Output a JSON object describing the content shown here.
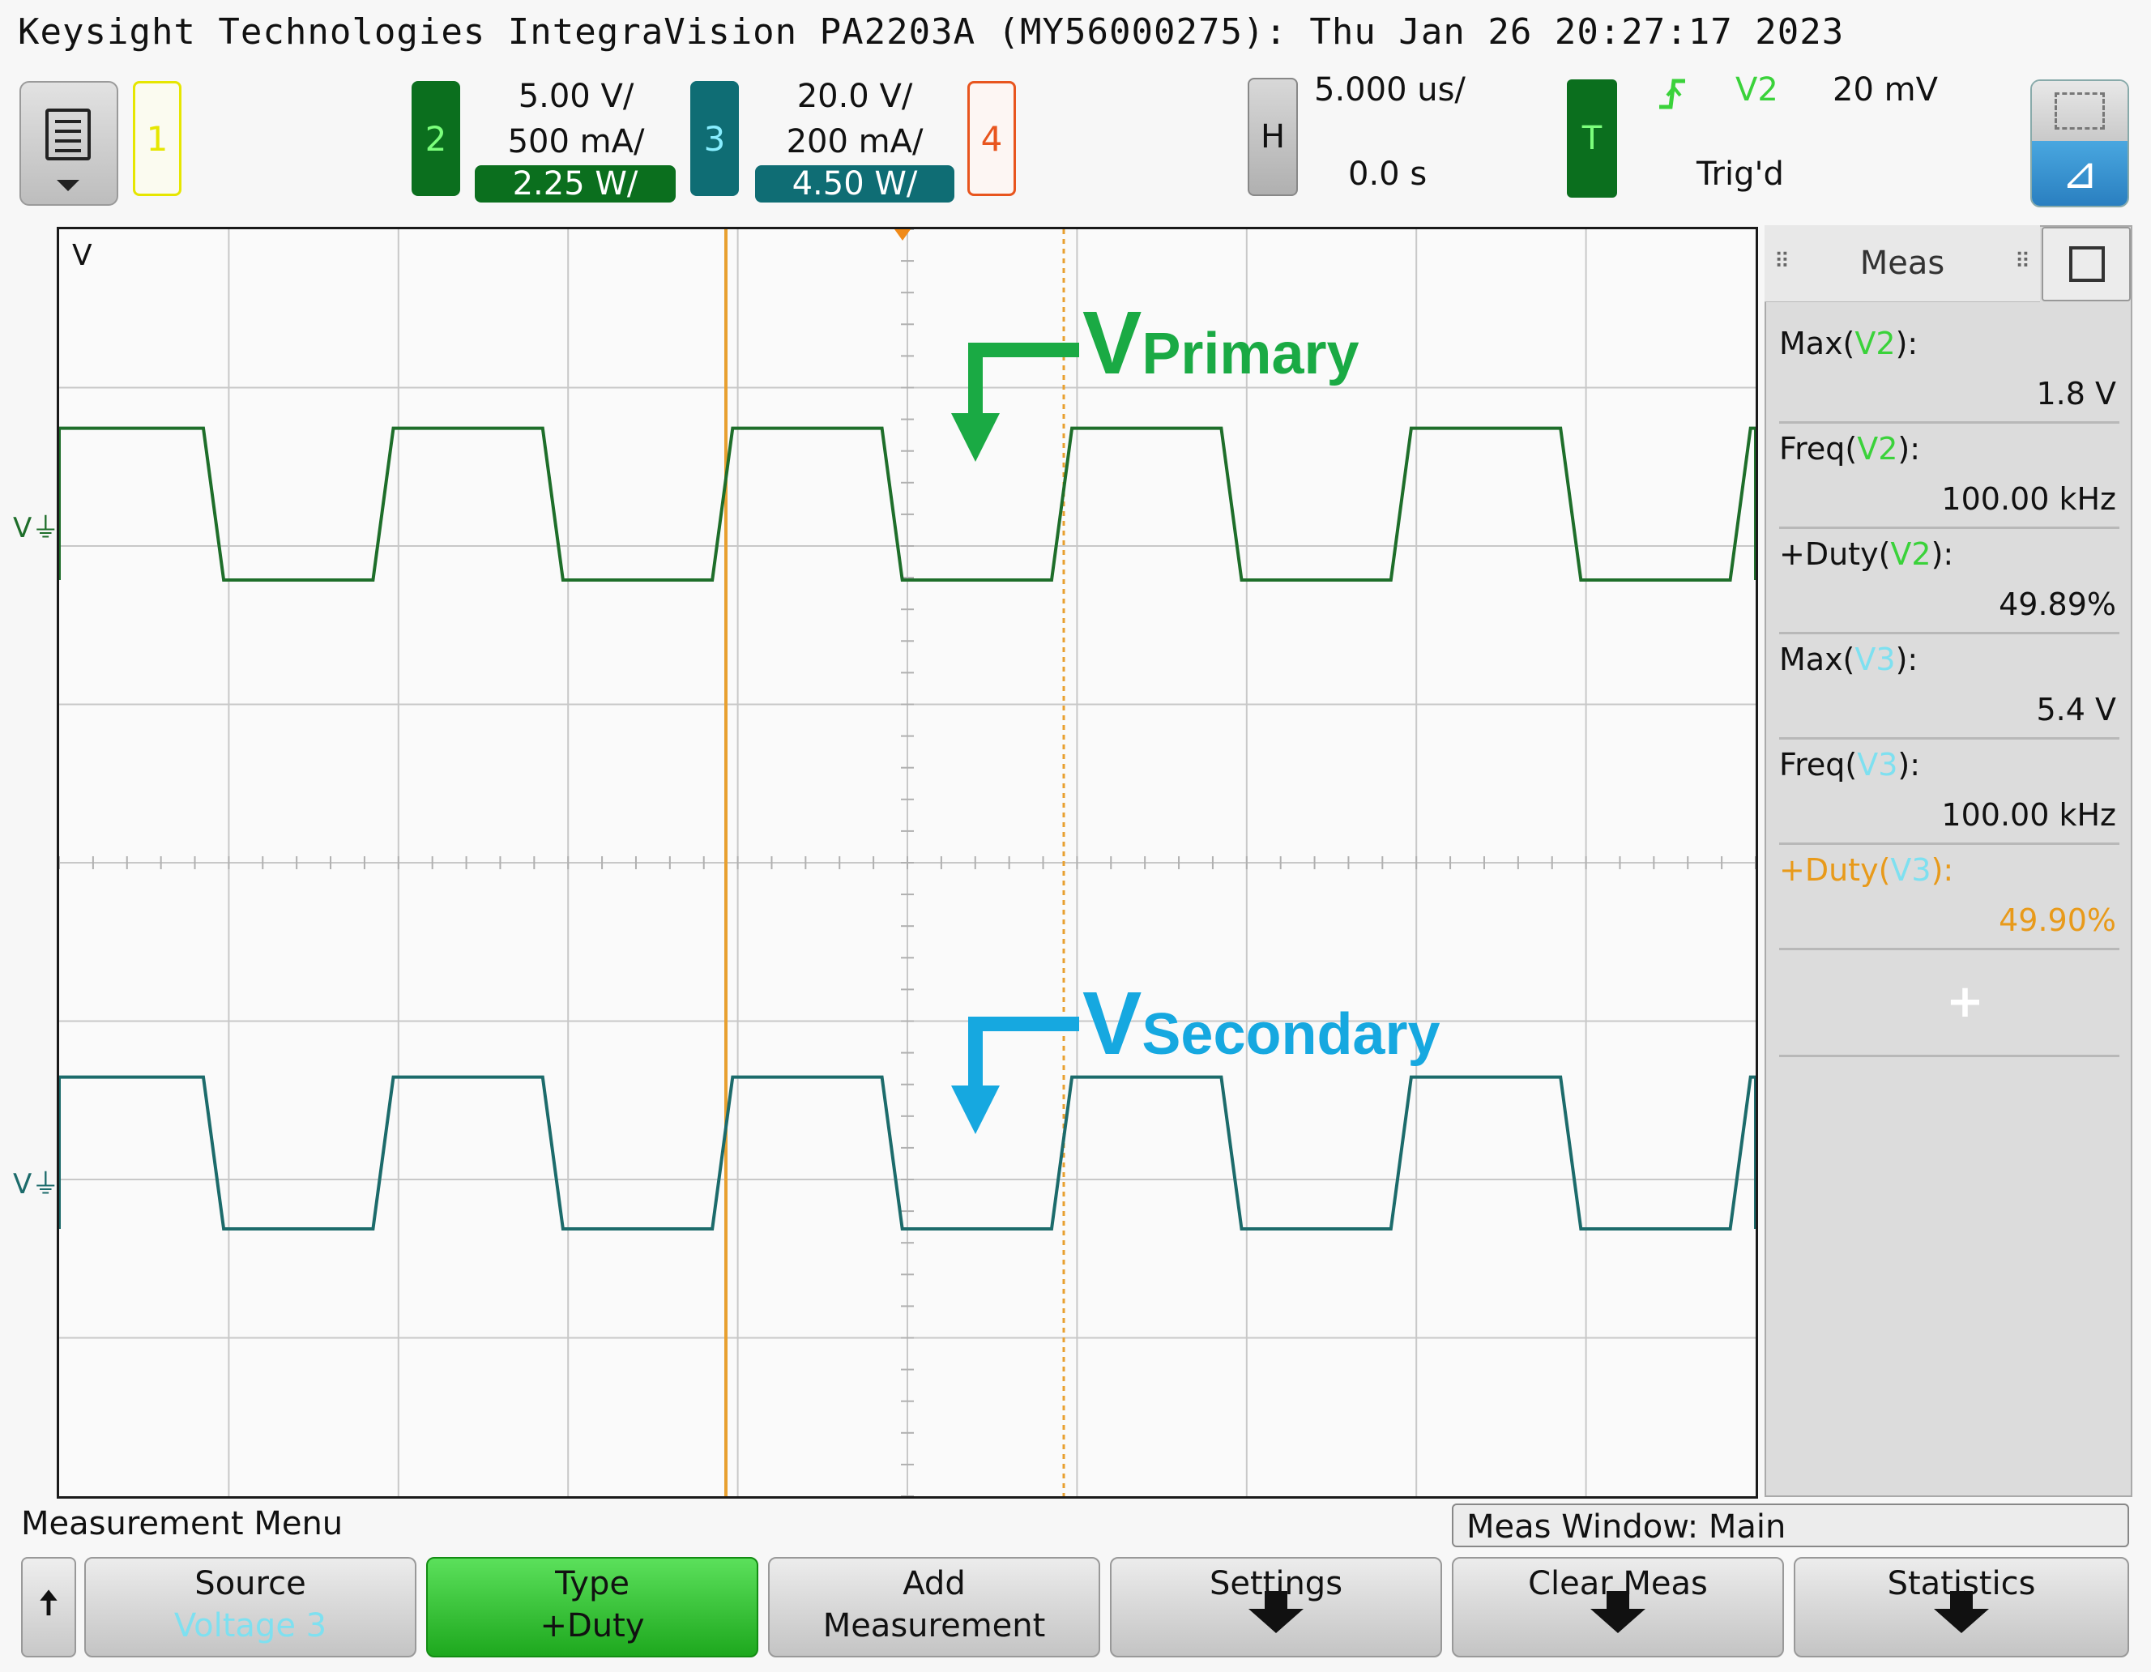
{
  "title": "Keysight Technologies IntegraVision PA2203A (MY56000275): Thu Jan 26 20:27:17 2023",
  "channels": [
    {
      "num": "1",
      "color": "#e6e600"
    },
    {
      "num": "2",
      "color": "#2eae2e",
      "volts": "5.00 V/",
      "amps": "500 mA/",
      "watts": "2.25 W/"
    },
    {
      "num": "3",
      "color": "#117a7a",
      "volts": "20.0 V/",
      "amps": "200 mA/",
      "watts": "4.50 W/"
    },
    {
      "num": "4",
      "color": "#e8551e"
    }
  ],
  "horizontal": {
    "label": "H",
    "scale": "5.000 us/",
    "delay": "0.0 s"
  },
  "trigger": {
    "label": "T",
    "source": "V2",
    "level": "20 mV",
    "status": "Trig'd",
    "slope_icon": "rising-edge-icon"
  },
  "grid": {
    "unit_label": "V"
  },
  "annotations": {
    "primary": {
      "v": "V",
      "sub": "Primary",
      "color": "#1aaa44"
    },
    "secondary": {
      "v": "V",
      "sub": "Secondary",
      "color": "#16a8e0"
    }
  },
  "meas": {
    "tab_label": "Meas",
    "items": [
      {
        "pre": "Max(",
        "src": "V2",
        "post": "):",
        "value": "1.8 V"
      },
      {
        "pre": "Freq(",
        "src": "V2",
        "post": "):",
        "value": "100.00 kHz"
      },
      {
        "pre": "+Duty(",
        "src": "V2",
        "post": "):",
        "value": "49.89%"
      },
      {
        "pre": "Max(",
        "src": "V3",
        "post": "):",
        "value": "5.4 V"
      },
      {
        "pre": "Freq(",
        "src": "V3",
        "post": "):",
        "value": "100.00 kHz"
      },
      {
        "pre": "+Duty(",
        "src": "V3",
        "post": "):",
        "value": "49.90%"
      }
    ],
    "add": "+"
  },
  "bottom": {
    "menu_title": "Measurement Menu",
    "window": "Meas Window: Main",
    "softkeys": [
      {
        "l1": "Source",
        "l2": "Voltage 3"
      },
      {
        "l1": "Type",
        "l2": "+Duty"
      },
      {
        "l1": "Add",
        "l2": "Measurement"
      },
      {
        "l1": "Settings"
      },
      {
        "l1": "Clear Meas"
      },
      {
        "l1": "Statistics"
      }
    ]
  },
  "waveforms": {
    "v2": {
      "color": "#1e6e2a",
      "period_us": 10,
      "high_div": 0.95,
      "low_div": -0.35
    },
    "v3": {
      "color": "#1c6b6b",
      "period_us": 10,
      "high_div": 0.95,
      "low_div": -0.35
    }
  }
}
